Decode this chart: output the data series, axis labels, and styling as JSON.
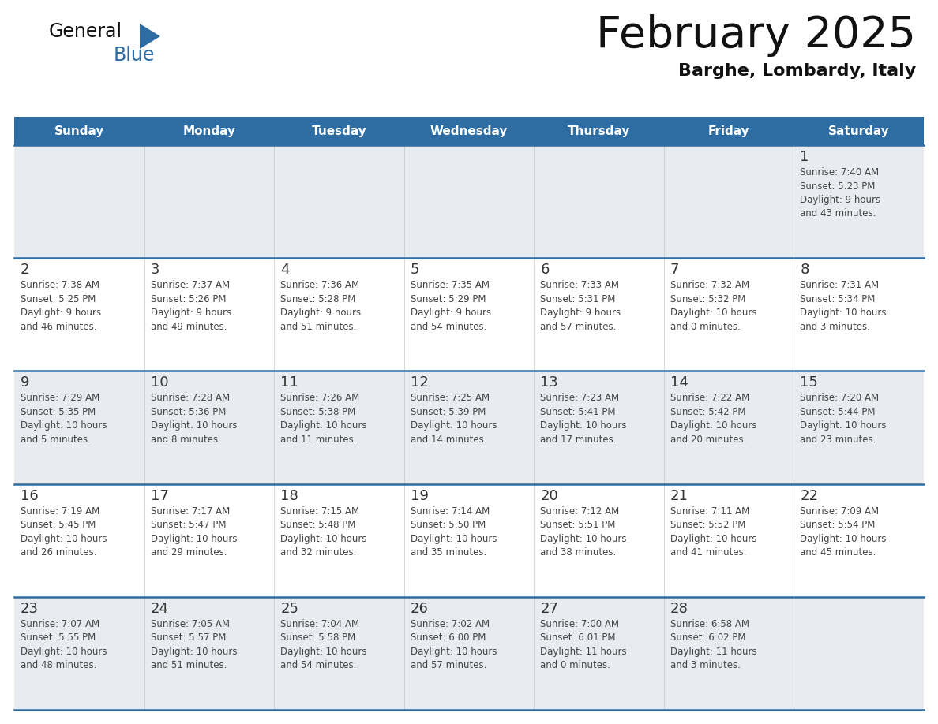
{
  "title": "February 2025",
  "subtitle": "Barghe, Lombardy, Italy",
  "header_bg_color": "#2e6da4",
  "header_text_color": "#ffffff",
  "cell_bg_light": "#e8ecf0",
  "cell_bg_white": "#ffffff",
  "divider_color": "#2e6da4",
  "day_number_color": "#333333",
  "cell_text_color": "#444444",
  "days_of_week": [
    "Sunday",
    "Monday",
    "Tuesday",
    "Wednesday",
    "Thursday",
    "Friday",
    "Saturday"
  ],
  "weeks": [
    [
      {
        "day": null,
        "info": null
      },
      {
        "day": null,
        "info": null
      },
      {
        "day": null,
        "info": null
      },
      {
        "day": null,
        "info": null
      },
      {
        "day": null,
        "info": null
      },
      {
        "day": null,
        "info": null
      },
      {
        "day": 1,
        "info": "Sunrise: 7:40 AM\nSunset: 5:23 PM\nDaylight: 9 hours\nand 43 minutes."
      }
    ],
    [
      {
        "day": 2,
        "info": "Sunrise: 7:38 AM\nSunset: 5:25 PM\nDaylight: 9 hours\nand 46 minutes."
      },
      {
        "day": 3,
        "info": "Sunrise: 7:37 AM\nSunset: 5:26 PM\nDaylight: 9 hours\nand 49 minutes."
      },
      {
        "day": 4,
        "info": "Sunrise: 7:36 AM\nSunset: 5:28 PM\nDaylight: 9 hours\nand 51 minutes."
      },
      {
        "day": 5,
        "info": "Sunrise: 7:35 AM\nSunset: 5:29 PM\nDaylight: 9 hours\nand 54 minutes."
      },
      {
        "day": 6,
        "info": "Sunrise: 7:33 AM\nSunset: 5:31 PM\nDaylight: 9 hours\nand 57 minutes."
      },
      {
        "day": 7,
        "info": "Sunrise: 7:32 AM\nSunset: 5:32 PM\nDaylight: 10 hours\nand 0 minutes."
      },
      {
        "day": 8,
        "info": "Sunrise: 7:31 AM\nSunset: 5:34 PM\nDaylight: 10 hours\nand 3 minutes."
      }
    ],
    [
      {
        "day": 9,
        "info": "Sunrise: 7:29 AM\nSunset: 5:35 PM\nDaylight: 10 hours\nand 5 minutes."
      },
      {
        "day": 10,
        "info": "Sunrise: 7:28 AM\nSunset: 5:36 PM\nDaylight: 10 hours\nand 8 minutes."
      },
      {
        "day": 11,
        "info": "Sunrise: 7:26 AM\nSunset: 5:38 PM\nDaylight: 10 hours\nand 11 minutes."
      },
      {
        "day": 12,
        "info": "Sunrise: 7:25 AM\nSunset: 5:39 PM\nDaylight: 10 hours\nand 14 minutes."
      },
      {
        "day": 13,
        "info": "Sunrise: 7:23 AM\nSunset: 5:41 PM\nDaylight: 10 hours\nand 17 minutes."
      },
      {
        "day": 14,
        "info": "Sunrise: 7:22 AM\nSunset: 5:42 PM\nDaylight: 10 hours\nand 20 minutes."
      },
      {
        "day": 15,
        "info": "Sunrise: 7:20 AM\nSunset: 5:44 PM\nDaylight: 10 hours\nand 23 minutes."
      }
    ],
    [
      {
        "day": 16,
        "info": "Sunrise: 7:19 AM\nSunset: 5:45 PM\nDaylight: 10 hours\nand 26 minutes."
      },
      {
        "day": 17,
        "info": "Sunrise: 7:17 AM\nSunset: 5:47 PM\nDaylight: 10 hours\nand 29 minutes."
      },
      {
        "day": 18,
        "info": "Sunrise: 7:15 AM\nSunset: 5:48 PM\nDaylight: 10 hours\nand 32 minutes."
      },
      {
        "day": 19,
        "info": "Sunrise: 7:14 AM\nSunset: 5:50 PM\nDaylight: 10 hours\nand 35 minutes."
      },
      {
        "day": 20,
        "info": "Sunrise: 7:12 AM\nSunset: 5:51 PM\nDaylight: 10 hours\nand 38 minutes."
      },
      {
        "day": 21,
        "info": "Sunrise: 7:11 AM\nSunset: 5:52 PM\nDaylight: 10 hours\nand 41 minutes."
      },
      {
        "day": 22,
        "info": "Sunrise: 7:09 AM\nSunset: 5:54 PM\nDaylight: 10 hours\nand 45 minutes."
      }
    ],
    [
      {
        "day": 23,
        "info": "Sunrise: 7:07 AM\nSunset: 5:55 PM\nDaylight: 10 hours\nand 48 minutes."
      },
      {
        "day": 24,
        "info": "Sunrise: 7:05 AM\nSunset: 5:57 PM\nDaylight: 10 hours\nand 51 minutes."
      },
      {
        "day": 25,
        "info": "Sunrise: 7:04 AM\nSunset: 5:58 PM\nDaylight: 10 hours\nand 54 minutes."
      },
      {
        "day": 26,
        "info": "Sunrise: 7:02 AM\nSunset: 6:00 PM\nDaylight: 10 hours\nand 57 minutes."
      },
      {
        "day": 27,
        "info": "Sunrise: 7:00 AM\nSunset: 6:01 PM\nDaylight: 11 hours\nand 0 minutes."
      },
      {
        "day": 28,
        "info": "Sunrise: 6:58 AM\nSunset: 6:02 PM\nDaylight: 11 hours\nand 3 minutes."
      },
      {
        "day": null,
        "info": null
      }
    ]
  ],
  "logo_general_color": "#111111",
  "logo_blue_color": "#2e6da4",
  "fig_width": 11.88,
  "fig_height": 9.18,
  "dpi": 100
}
